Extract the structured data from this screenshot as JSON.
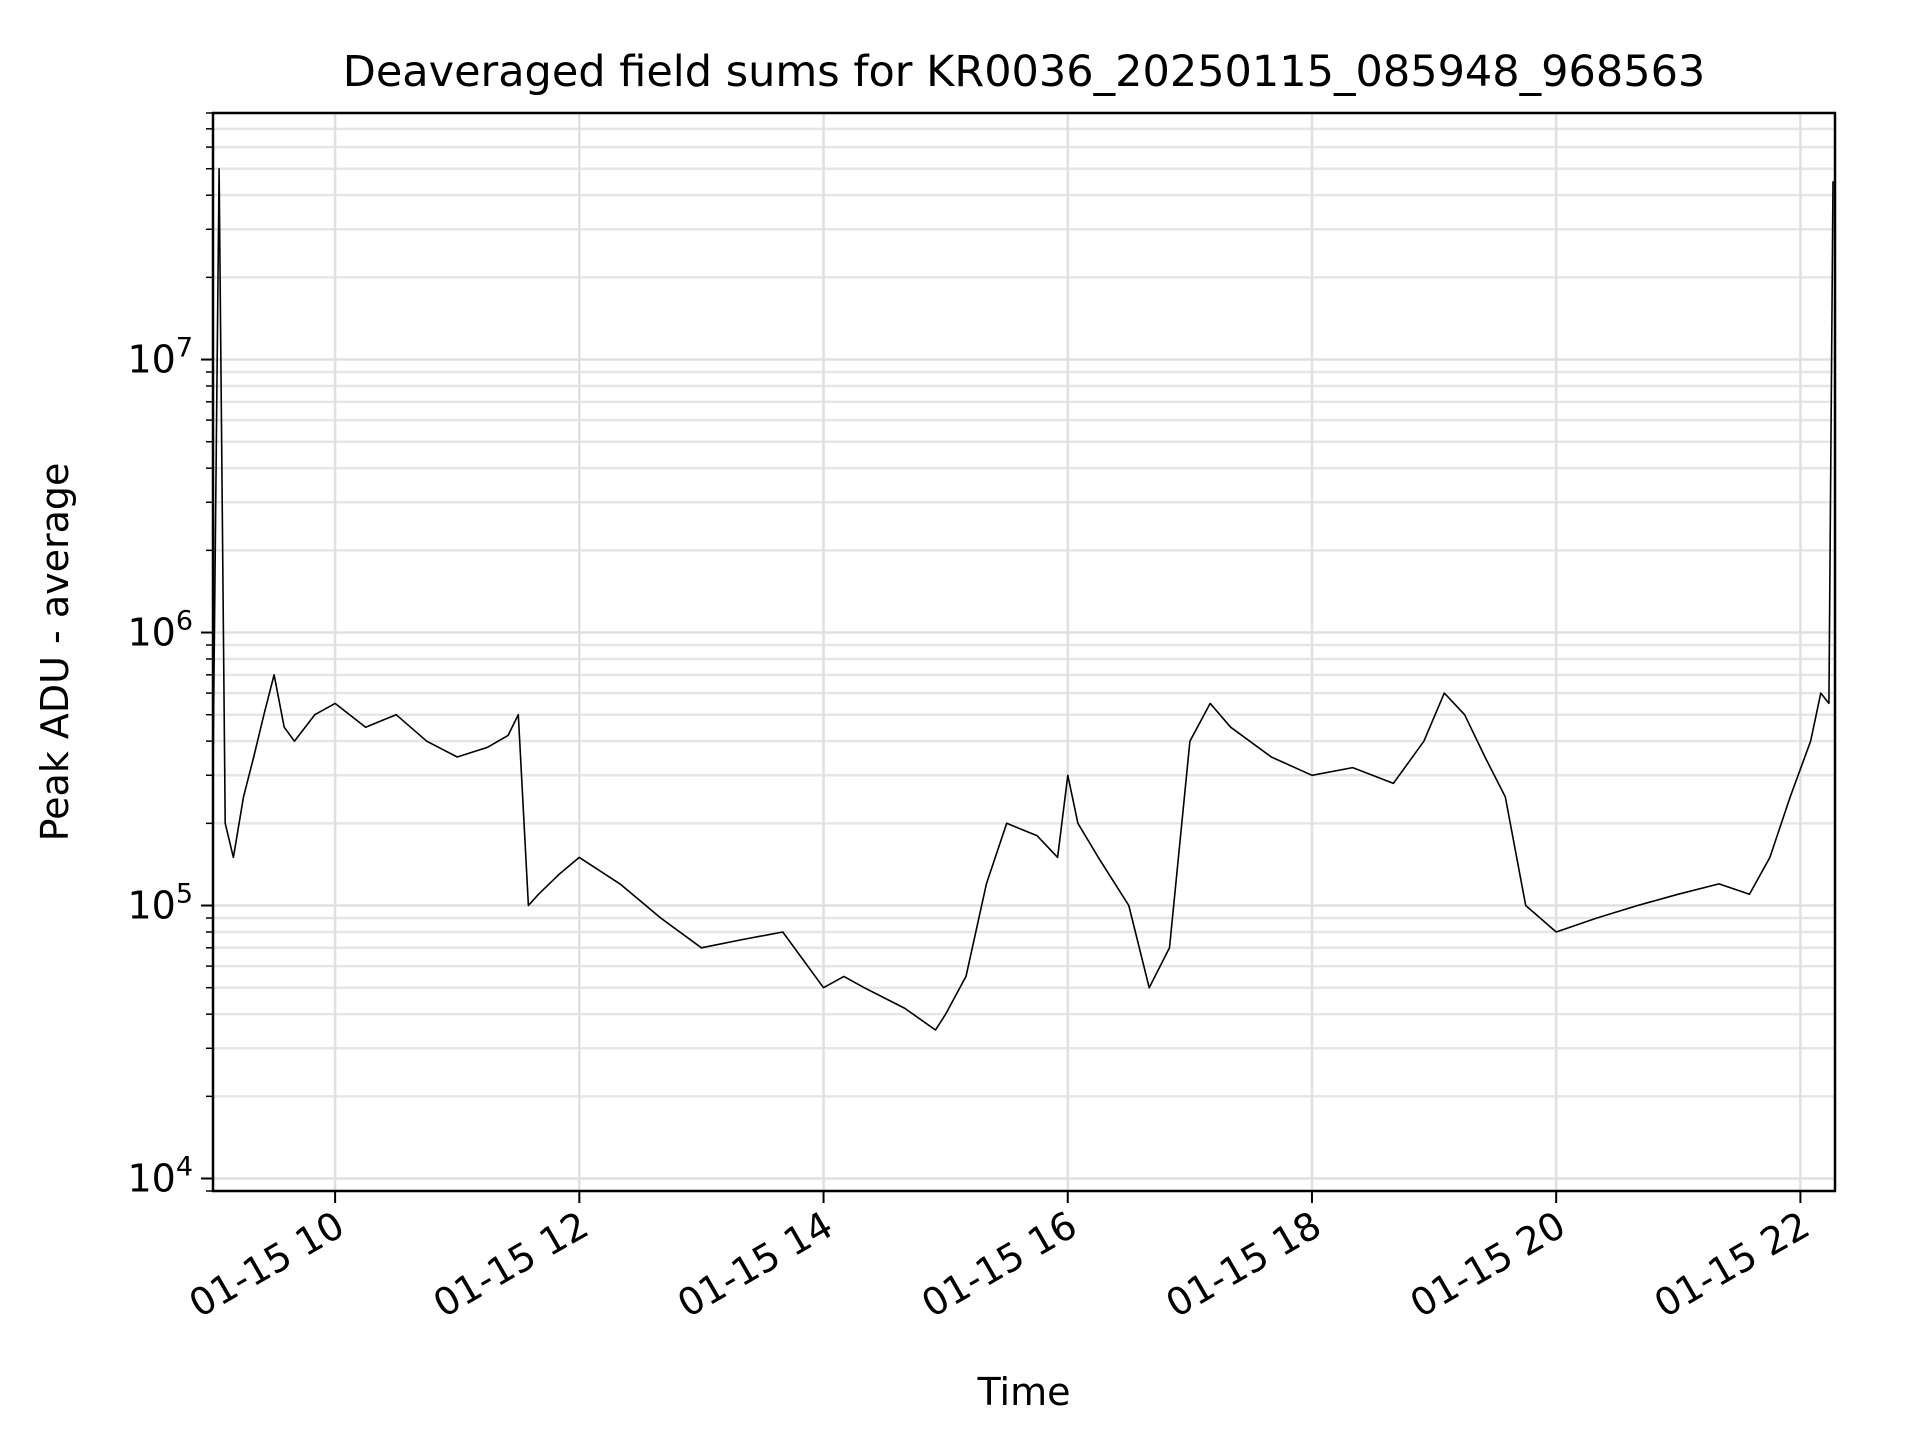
{
  "chart_data": {
    "type": "line",
    "title": "Deaveraged field sums for KR0036_20250115_085948_968563",
    "xlabel": "Time",
    "ylabel": "Peak ADU - average",
    "yscale": "log",
    "grid": true,
    "grid_minor_y": true,
    "line_color": "#000000",
    "xlim": [
      "2025-01-15 09:00",
      "2025-01-15 22:17"
    ],
    "ylim": [
      9000,
      80000000
    ],
    "x_ticks": [
      {
        "value": "2025-01-15 10:00",
        "label": "01-15 10"
      },
      {
        "value": "2025-01-15 12:00",
        "label": "01-15 12"
      },
      {
        "value": "2025-01-15 14:00",
        "label": "01-15 14"
      },
      {
        "value": "2025-01-15 16:00",
        "label": "01-15 16"
      },
      {
        "value": "2025-01-15 18:00",
        "label": "01-15 18"
      },
      {
        "value": "2025-01-15 20:00",
        "label": "01-15 20"
      },
      {
        "value": "2025-01-15 22:00",
        "label": "01-15 22"
      }
    ],
    "y_ticks": [
      {
        "value": 10000,
        "base": "10",
        "exp": "4"
      },
      {
        "value": 100000,
        "base": "10",
        "exp": "5"
      },
      {
        "value": 1000000,
        "base": "10",
        "exp": "6"
      },
      {
        "value": 10000000,
        "base": "10",
        "exp": "7"
      }
    ],
    "series": [
      {
        "x": [
          "2025-01-15 09:00",
          "2025-01-15 09:03",
          "2025-01-15 09:06",
          "2025-01-15 09:10",
          "2025-01-15 09:15",
          "2025-01-15 09:20",
          "2025-01-15 09:25",
          "2025-01-15 09:30",
          "2025-01-15 09:35",
          "2025-01-15 09:40",
          "2025-01-15 09:50",
          "2025-01-15 10:00",
          "2025-01-15 10:15",
          "2025-01-15 10:30",
          "2025-01-15 10:45",
          "2025-01-15 11:00",
          "2025-01-15 11:15",
          "2025-01-15 11:25",
          "2025-01-15 11:30",
          "2025-01-15 11:35",
          "2025-01-15 11:40",
          "2025-01-15 11:50",
          "2025-01-15 12:00",
          "2025-01-15 12:20",
          "2025-01-15 12:40",
          "2025-01-15 13:00",
          "2025-01-15 13:20",
          "2025-01-15 13:40",
          "2025-01-15 14:00",
          "2025-01-15 14:10",
          "2025-01-15 14:20",
          "2025-01-15 14:40",
          "2025-01-15 14:55",
          "2025-01-15 15:00",
          "2025-01-15 15:10",
          "2025-01-15 15:20",
          "2025-01-15 15:30",
          "2025-01-15 15:45",
          "2025-01-15 15:55",
          "2025-01-15 16:00",
          "2025-01-15 16:05",
          "2025-01-15 16:15",
          "2025-01-15 16:30",
          "2025-01-15 16:40",
          "2025-01-15 16:50",
          "2025-01-15 17:00",
          "2025-01-15 17:10",
          "2025-01-15 17:20",
          "2025-01-15 17:40",
          "2025-01-15 18:00",
          "2025-01-15 18:20",
          "2025-01-15 18:40",
          "2025-01-15 18:55",
          "2025-01-15 19:05",
          "2025-01-15 19:15",
          "2025-01-15 19:25",
          "2025-01-15 19:35",
          "2025-01-15 19:45",
          "2025-01-15 20:00",
          "2025-01-15 20:20",
          "2025-01-15 20:40",
          "2025-01-15 21:00",
          "2025-01-15 21:20",
          "2025-01-15 21:35",
          "2025-01-15 21:45",
          "2025-01-15 21:55",
          "2025-01-15 22:05",
          "2025-01-15 22:10",
          "2025-01-15 22:14",
          "2025-01-15 22:16"
        ],
        "y": [
          300000,
          50000000,
          200000,
          150000,
          250000,
          350000,
          500000,
          700000,
          450000,
          400000,
          500000,
          550000,
          450000,
          500000,
          400000,
          350000,
          380000,
          420000,
          500000,
          100000,
          110000,
          130000,
          150000,
          120000,
          90000,
          70000,
          75000,
          80000,
          50000,
          55000,
          50000,
          42000,
          35000,
          40000,
          55000,
          120000,
          200000,
          180000,
          150000,
          300000,
          200000,
          150000,
          100000,
          50000,
          70000,
          400000,
          550000,
          450000,
          350000,
          300000,
          320000,
          280000,
          400000,
          600000,
          500000,
          350000,
          250000,
          100000,
          80000,
          90000,
          100000,
          110000,
          120000,
          110000,
          150000,
          250000,
          400000,
          600000,
          550000,
          45000000
        ]
      }
    ]
  }
}
